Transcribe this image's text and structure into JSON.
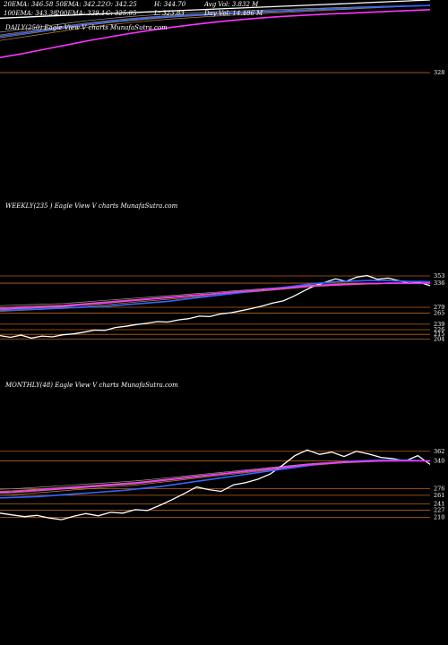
{
  "daily_header": {
    "row1": [
      "20EMA: 346.58",
      "50EMA: 342.22",
      "O: 342.25",
      "H: 344.70",
      "Avg Vol: 3.832 M"
    ],
    "row2": [
      "100EMA: 343.38",
      "200EMA: 339.1",
      "C: 325.05",
      "L: 323.83",
      "Day Vol: 14.486 M"
    ]
  },
  "chart_data": [
    {
      "id": "daily",
      "type": "line",
      "title": "DAILY(250) Eagle View V charts MunafaSutra.com",
      "levels": [
        328
      ],
      "ylim": [
        315,
        352
      ],
      "series": [
        {
          "values": [
            346,
            346.3,
            346.6,
            346.9,
            347.2,
            347.5,
            347.8,
            348.1,
            348.4,
            348.7,
            349.0,
            349.3,
            349.6,
            349.9,
            350.2,
            350.5,
            350.8,
            351.1,
            351.4,
            351.7,
            352.0
          ],
          "color": "#ffffff"
        },
        {
          "values": [
            333,
            334.2,
            335.6,
            337.0,
            338.4,
            339.7,
            340.9,
            342.0,
            343.0,
            343.9,
            344.7,
            345.4,
            346.0,
            346.5,
            346.9,
            347.3,
            347.6,
            347.9,
            348.2,
            348.5,
            348.8
          ],
          "color": "#ff33ff"
        },
        {
          "values": [
            340,
            341,
            342,
            343,
            344,
            344.8,
            345.5,
            346.1,
            346.6,
            347.0,
            347.4,
            347.7,
            348.0,
            348.3,
            348.6,
            348.9,
            349.2,
            349.5,
            349.8,
            350.0,
            350.2
          ],
          "color": "#3366ff"
        }
      ]
    },
    {
      "id": "weekly",
      "type": "line",
      "title": "WEEKLY(235 ) Eagle View V charts MunafaSutra.com",
      "levels": [
        353,
        336,
        279,
        265,
        239,
        226,
        215,
        204
      ],
      "ylim": [
        190,
        370
      ],
      "series": [
        {
          "values": [
            212,
            208,
            213,
            206,
            211,
            209,
            214,
            216,
            220,
            225,
            224,
            231,
            234,
            238,
            241,
            245,
            244,
            249,
            252,
            258,
            257,
            263,
            266,
            271,
            276,
            282,
            289,
            294,
            305,
            318,
            330,
            338,
            346,
            340,
            350,
            354,
            345,
            348,
            342,
            336,
            338,
            330
          ],
          "color": "#ffffff"
        },
        {
          "values": [
            272,
            272,
            273,
            274,
            275,
            276,
            277,
            278,
            279,
            280,
            281,
            283,
            285,
            287,
            289,
            291,
            293,
            296,
            299,
            302,
            305,
            308,
            311,
            314,
            317,
            320,
            323,
            326,
            329,
            332,
            335,
            337,
            339,
            340,
            341,
            342,
            342,
            342,
            341,
            340,
            340,
            339
          ],
          "color": "#3366ff"
        },
        {
          "values": [
            276,
            277,
            278,
            279,
            280,
            281,
            282,
            284,
            286,
            288,
            290,
            292,
            294,
            296,
            298,
            300,
            302,
            304,
            306,
            308,
            310,
            312,
            314,
            316,
            318,
            320,
            322,
            324,
            326,
            328,
            330,
            331,
            332,
            333,
            334,
            335,
            335,
            336,
            336,
            336,
            336,
            336
          ],
          "color": "#ff33ff"
        }
      ]
    },
    {
      "id": "monthly",
      "type": "line",
      "title": "MONTHLY(48) Eagle View V charts MunafaSutra.com",
      "levels": [
        362,
        340,
        276,
        261,
        241,
        227,
        210
      ],
      "ylim": [
        195,
        380
      ],
      "series": [
        {
          "values": [
            220,
            216,
            212,
            215,
            209,
            205,
            213,
            219,
            214,
            222,
            220,
            228,
            226,
            238,
            251,
            265,
            280,
            274,
            270,
            285,
            290,
            298,
            310,
            330,
            352,
            365,
            355,
            360,
            350,
            362,
            356,
            348,
            345,
            340,
            352,
            332
          ],
          "color": "#ffffff"
        },
        {
          "values": [
            255,
            256,
            257,
            258,
            260,
            262,
            264,
            266,
            268,
            270,
            272,
            275,
            278,
            281,
            285,
            289,
            293,
            297,
            301,
            305,
            309,
            313,
            317,
            321,
            325,
            329,
            333,
            336,
            338,
            340,
            341,
            342,
            342,
            342,
            341,
            340
          ],
          "color": "#3366ff"
        },
        {
          "values": [
            268,
            269,
            271,
            273,
            275,
            277,
            279,
            281,
            283,
            285,
            287,
            289,
            292,
            295,
            298,
            301,
            304,
            307,
            310,
            313,
            316,
            319,
            322,
            325,
            328,
            331,
            333,
            335,
            337,
            338,
            339,
            340,
            340,
            340,
            340,
            340
          ],
          "color": "#ff33ff"
        }
      ]
    }
  ],
  "style": {
    "background": "#000000",
    "level_color": "#b8621b",
    "band_color": "#c08040"
  }
}
